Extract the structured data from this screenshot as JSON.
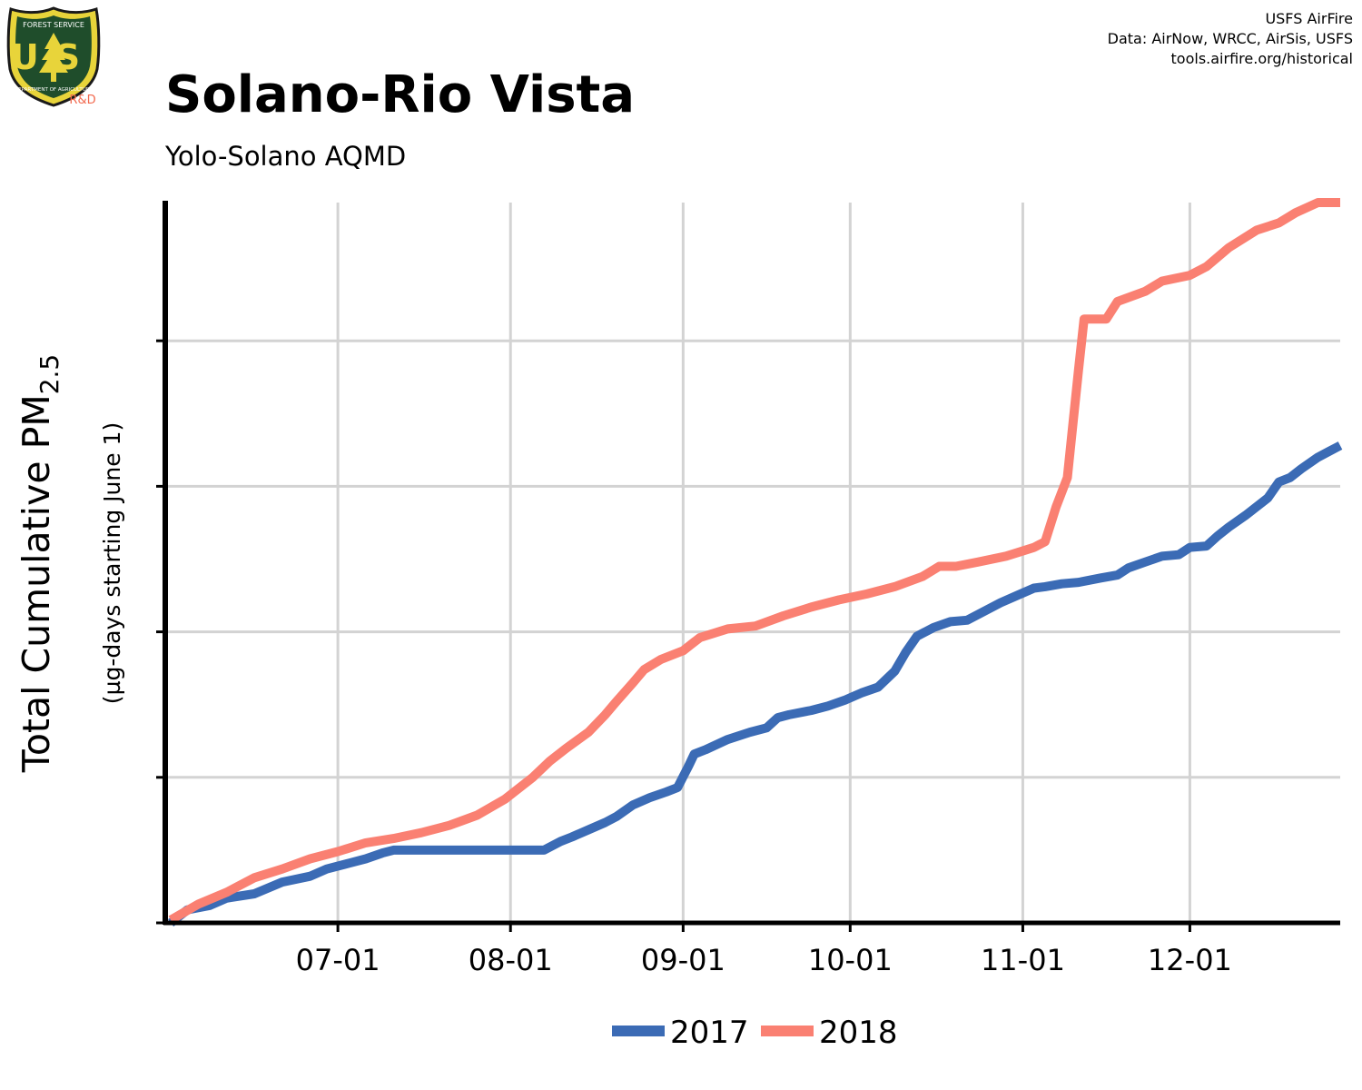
{
  "logo": {
    "agency": "FOREST SERVICE",
    "letters": "US",
    "department": "DEPARTMENT OF AGRICULTURE",
    "badge": "R&D"
  },
  "credits": [
    "USFS AirFire",
    "Data: AirNow, WRCC, AirSis, USFS",
    "tools.airfire.org/historical"
  ],
  "title": "Solano-Rio Vista",
  "subtitle": "Yolo-Solano AQMD",
  "ylabel_main": "Total Cumulative PM",
  "ylabel_sub": "2.5",
  "ylabel_units": "(µg-days starting June 1)",
  "colors": {
    "series_2017": "#3b6bb5",
    "series_2018": "#fa8072",
    "grid": "#d3d3d3",
    "axis": "#000000"
  },
  "chart_data": {
    "type": "line",
    "x_unit": "days since June 1",
    "xlim": [
      -1,
      210
    ],
    "ylim": [
      0,
      49.5
    ],
    "y_ticks": [
      0,
      10,
      20,
      30,
      40
    ],
    "y_tick_labels_shown": false,
    "x_ticks": [
      {
        "label": "07-01",
        "day": 30
      },
      {
        "label": "08-01",
        "day": 61
      },
      {
        "label": "09-01",
        "day": 92
      },
      {
        "label": "10-01",
        "day": 122
      },
      {
        "label": "11-01",
        "day": 153
      },
      {
        "label": "12-01",
        "day": 183
      }
    ],
    "grid": true,
    "legend_position": "bottom",
    "series": [
      {
        "name": "2017",
        "color": "#3b6bb5",
        "points": [
          [
            0,
            0
          ],
          [
            3,
            0.9
          ],
          [
            7,
            1.2
          ],
          [
            10,
            1.7
          ],
          [
            15,
            2.0
          ],
          [
            20,
            2.8
          ],
          [
            25,
            3.2
          ],
          [
            28,
            3.7
          ],
          [
            32,
            4.1
          ],
          [
            35,
            4.4
          ],
          [
            38,
            4.8
          ],
          [
            40,
            5.0
          ],
          [
            44,
            5.0
          ],
          [
            50,
            5.0
          ],
          [
            60,
            5.0
          ],
          [
            67,
            5.0
          ],
          [
            70,
            5.6
          ],
          [
            72,
            5.9
          ],
          [
            75,
            6.4
          ],
          [
            78,
            6.9
          ],
          [
            80,
            7.3
          ],
          [
            83,
            8.1
          ],
          [
            86,
            8.6
          ],
          [
            89,
            9.0
          ],
          [
            91,
            9.3
          ],
          [
            93,
            10.8
          ],
          [
            94,
            11.6
          ],
          [
            96,
            11.9
          ],
          [
            100,
            12.6
          ],
          [
            104,
            13.1
          ],
          [
            107,
            13.4
          ],
          [
            109,
            14.1
          ],
          [
            111,
            14.3
          ],
          [
            115,
            14.6
          ],
          [
            118,
            14.9
          ],
          [
            121,
            15.3
          ],
          [
            124,
            15.8
          ],
          [
            127,
            16.2
          ],
          [
            130,
            17.3
          ],
          [
            132,
            18.6
          ],
          [
            134,
            19.7
          ],
          [
            137,
            20.3
          ],
          [
            140,
            20.7
          ],
          [
            143,
            20.8
          ],
          [
            146,
            21.4
          ],
          [
            149,
            22.0
          ],
          [
            152,
            22.5
          ],
          [
            155,
            23.0
          ],
          [
            157,
            23.1
          ],
          [
            160,
            23.3
          ],
          [
            163,
            23.4
          ],
          [
            167,
            23.7
          ],
          [
            170,
            23.9
          ],
          [
            172,
            24.4
          ],
          [
            175,
            24.8
          ],
          [
            178,
            25.2
          ],
          [
            181,
            25.3
          ],
          [
            183,
            25.8
          ],
          [
            186,
            25.9
          ],
          [
            188,
            26.6
          ],
          [
            190,
            27.2
          ],
          [
            193,
            28.0
          ],
          [
            195,
            28.6
          ],
          [
            197,
            29.2
          ],
          [
            199,
            30.3
          ],
          [
            201,
            30.6
          ],
          [
            203,
            31.2
          ],
          [
            206,
            32.0
          ],
          [
            208,
            32.4
          ],
          [
            210,
            32.8
          ]
        ]
      },
      {
        "name": "2018",
        "color": "#fa8072",
        "points": [
          [
            0,
            0.2
          ],
          [
            5,
            1.3
          ],
          [
            10,
            2.1
          ],
          [
            15,
            3.1
          ],
          [
            20,
            3.7
          ],
          [
            25,
            4.4
          ],
          [
            30,
            4.9
          ],
          [
            35,
            5.5
          ],
          [
            40,
            5.8
          ],
          [
            45,
            6.2
          ],
          [
            50,
            6.7
          ],
          [
            55,
            7.4
          ],
          [
            60,
            8.5
          ],
          [
            65,
            10.0
          ],
          [
            68,
            11.1
          ],
          [
            71,
            12.0
          ],
          [
            75,
            13.1
          ],
          [
            78,
            14.3
          ],
          [
            80,
            15.2
          ],
          [
            83,
            16.5
          ],
          [
            85,
            17.4
          ],
          [
            88,
            18.1
          ],
          [
            92,
            18.7
          ],
          [
            95,
            19.6
          ],
          [
            100,
            20.2
          ],
          [
            105,
            20.4
          ],
          [
            110,
            21.1
          ],
          [
            115,
            21.7
          ],
          [
            120,
            22.2
          ],
          [
            125,
            22.6
          ],
          [
            130,
            23.1
          ],
          [
            135,
            23.8
          ],
          [
            138,
            24.5
          ],
          [
            141,
            24.5
          ],
          [
            145,
            24.8
          ],
          [
            150,
            25.2
          ],
          [
            155,
            25.8
          ],
          [
            157,
            26.2
          ],
          [
            159,
            28.6
          ],
          [
            161,
            30.6
          ],
          [
            163,
            38.0
          ],
          [
            164,
            41.5
          ],
          [
            168,
            41.5
          ],
          [
            170,
            42.7
          ],
          [
            175,
            43.4
          ],
          [
            178,
            44.1
          ],
          [
            183,
            44.5
          ],
          [
            186,
            45.1
          ],
          [
            190,
            46.4
          ],
          [
            195,
            47.6
          ],
          [
            199,
            48.1
          ],
          [
            202,
            48.8
          ],
          [
            206,
            49.5
          ],
          [
            210,
            49.5
          ]
        ]
      }
    ]
  }
}
